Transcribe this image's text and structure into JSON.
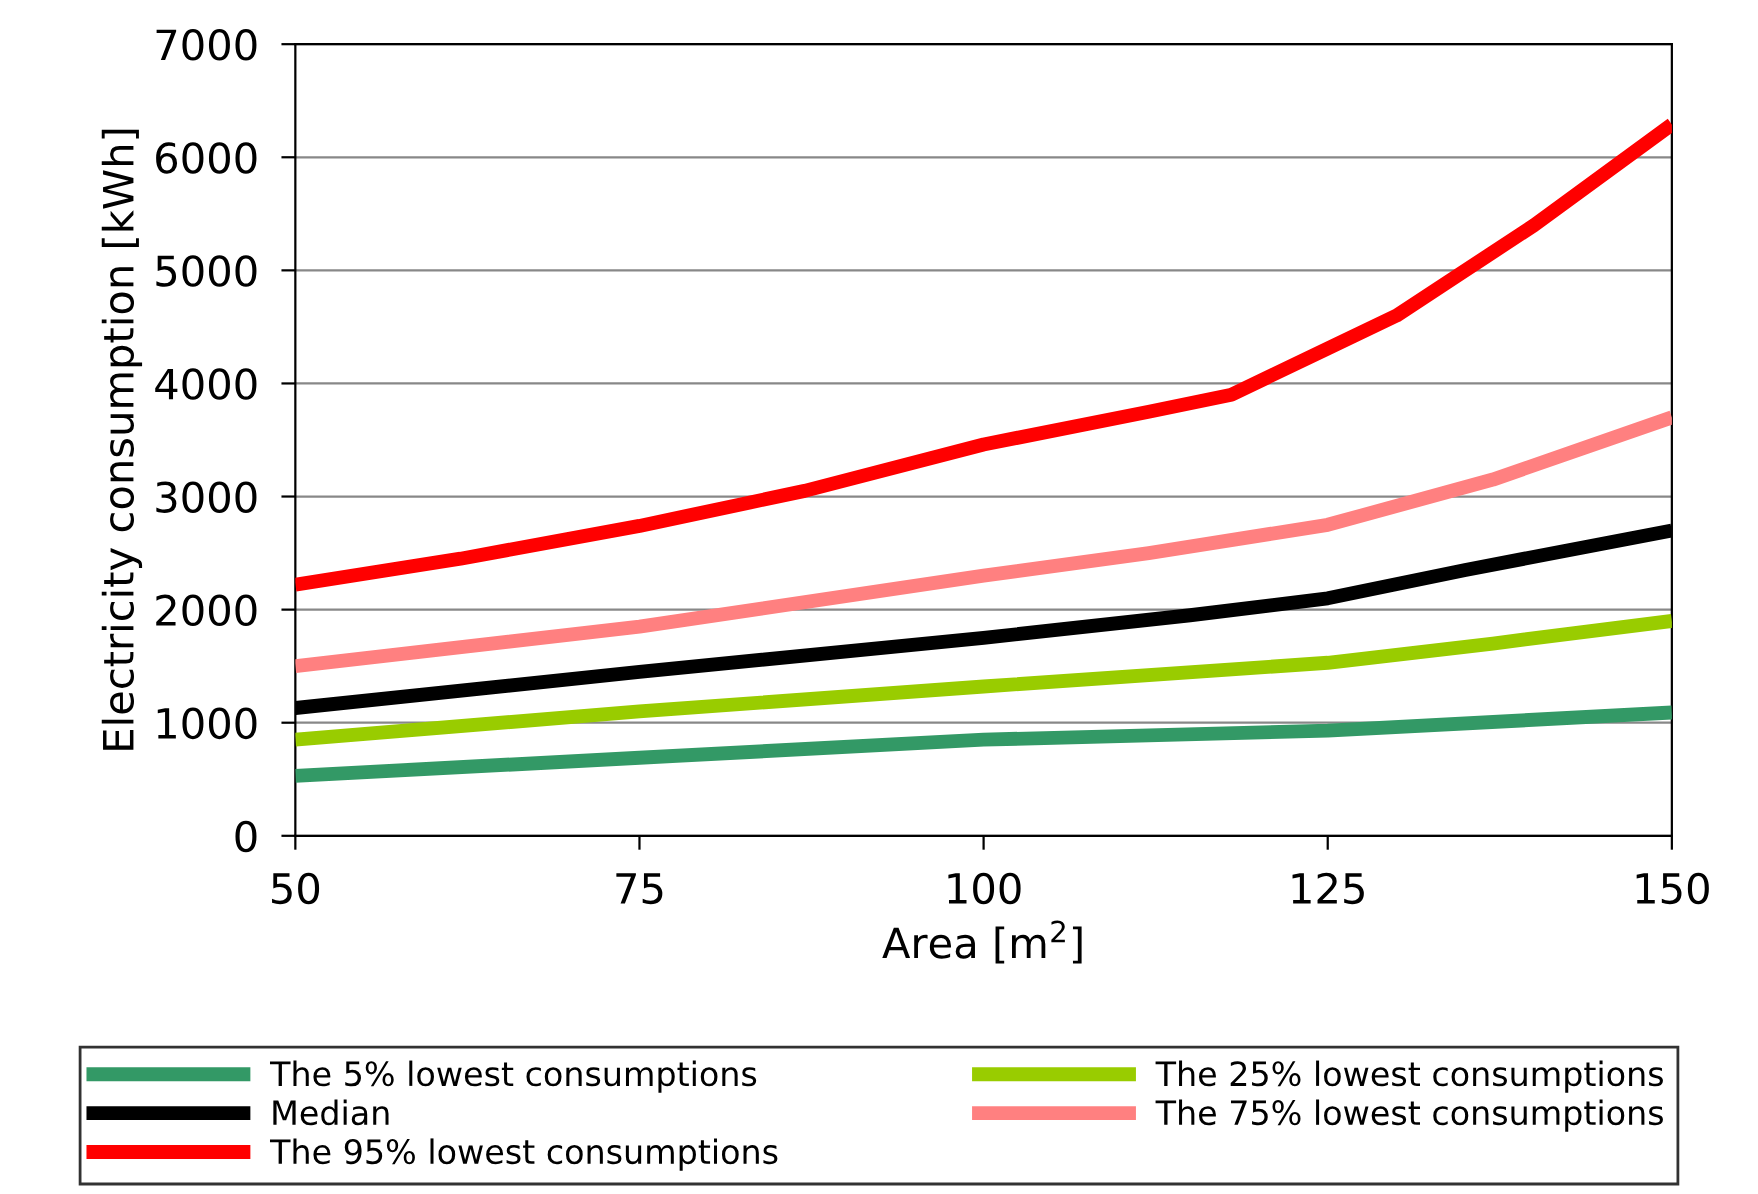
{
  "chart_data": {
    "type": "line",
    "xlabel": "Area [m$^{2}$]",
    "ylabel": "Electricity consumption [kWh]",
    "xlim": [
      50,
      150
    ],
    "ylim": [
      0,
      7000
    ],
    "xticks": [
      50,
      75,
      100,
      125,
      150
    ],
    "yticks": [
      0,
      1000,
      2000,
      3000,
      4000,
      5000,
      6000,
      7000
    ],
    "grid": "y",
    "legend": "bottom",
    "marker": "none",
    "line_style": "solid",
    "series": [
      {
        "name": "The 5% lowest consumptions",
        "color": "#339966",
        "x": [
          50,
          75,
          100,
          125,
          150
        ],
        "values": [
          530,
          690,
          850,
          930,
          1090
        ]
      },
      {
        "name": "Median",
        "color": "#000000",
        "x": [
          50,
          75,
          100,
          115,
          125,
          135,
          150
        ],
        "values": [
          1130,
          1450,
          1750,
          1950,
          2100,
          2350,
          2700
        ]
      },
      {
        "name": "The 95% lowest consumptions",
        "color": "#ff0000",
        "x": [
          50,
          62,
          75,
          87,
          100,
          112,
          118,
          125,
          130,
          140,
          150
        ],
        "values": [
          2220,
          2450,
          2740,
          3050,
          3460,
          3750,
          3900,
          4310,
          4600,
          5400,
          6290
        ]
      },
      {
        "name": "The 25% lowest consumptions",
        "color": "#99cc00",
        "x": [
          50,
          75,
          100,
          125,
          137,
          150
        ],
        "values": [
          850,
          1100,
          1320,
          1530,
          1700,
          1900
        ]
      },
      {
        "name": "The 75% lowest consumptions",
        "color": "#ff8080",
        "x": [
          50,
          75,
          100,
          112,
          125,
          137,
          150
        ],
        "values": [
          1500,
          1850,
          2300,
          2500,
          2750,
          3150,
          3700
        ]
      }
    ]
  }
}
